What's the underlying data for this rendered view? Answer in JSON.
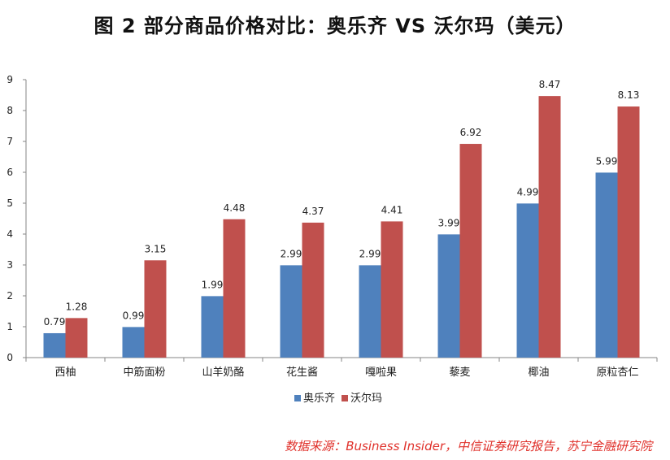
{
  "title": "图 2  部分商品价格对比：奥乐齐 VS 沃尔玛（美元）",
  "source": "数据来源：Business Insider，中信证券研究报告，苏宁金融研究院",
  "chart_data": {
    "type": "bar",
    "title": "图 2  部分商品价格对比：奥乐齐 VS 沃尔玛（美元）",
    "xlabel": "",
    "ylabel": "",
    "ylim": [
      0,
      9
    ],
    "yticks": [
      "0",
      "1",
      "2",
      "3",
      "4",
      "5",
      "6",
      "7",
      "8",
      "9"
    ],
    "grid": false,
    "legend_position": "bottom",
    "categories": [
      "西柚",
      "中筋面粉",
      "山羊奶酪",
      "花生酱",
      "嘎啦果",
      "藜麦",
      "椰油",
      "原粒杏仁"
    ],
    "series": [
      {
        "name": "奥乐齐",
        "color": "#4f81bd",
        "values": [
          0.79,
          0.99,
          1.99,
          2.99,
          2.99,
          3.99,
          4.99,
          5.99
        ],
        "labels": [
          "0.79",
          "0.99",
          "1.99",
          "2.99",
          "2.99",
          "3.99",
          "4.99",
          "5.99"
        ]
      },
      {
        "name": "沃尔玛",
        "color": "#c0504d",
        "values": [
          1.28,
          3.15,
          4.48,
          4.37,
          4.41,
          6.92,
          8.47,
          8.13
        ],
        "labels": [
          "1.28",
          "3.15",
          "4.48",
          "4.37",
          "4.41",
          "6.92",
          "8.47",
          "8.13"
        ]
      }
    ]
  }
}
